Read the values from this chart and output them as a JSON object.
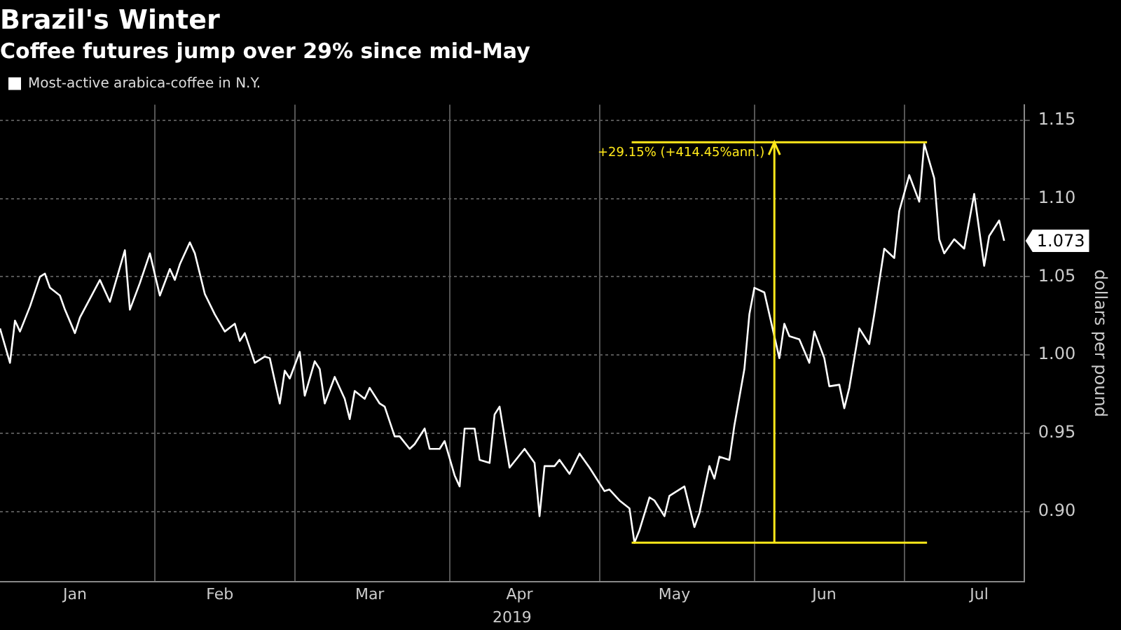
{
  "chart_data": {
    "type": "line",
    "title": "Brazil's Winter",
    "subtitle": "Coffee futures jump over 29% since mid-May",
    "xlabel": "2019",
    "ylabel": "dollars per pound",
    "x": [
      "2019-01-01",
      "2019-01-03",
      "2019-01-04",
      "2019-01-05",
      "2019-01-07",
      "2019-01-09",
      "2019-01-10",
      "2019-01-11",
      "2019-01-13",
      "2019-01-14",
      "2019-01-16",
      "2019-01-17",
      "2019-01-21",
      "2019-01-23",
      "2019-01-26",
      "2019-01-27",
      "2019-01-29",
      "2019-01-31",
      "2019-02-02",
      "2019-02-04",
      "2019-02-05",
      "2019-02-06",
      "2019-02-08",
      "2019-02-09",
      "2019-02-11",
      "2019-02-13",
      "2019-02-15",
      "2019-02-17",
      "2019-02-18",
      "2019-02-19",
      "2019-02-21",
      "2019-02-23",
      "2019-02-24",
      "2019-02-26",
      "2019-02-27",
      "2019-02-28",
      "2019-03-02",
      "2019-03-03",
      "2019-03-05",
      "2019-03-06",
      "2019-03-07",
      "2019-03-09",
      "2019-03-11",
      "2019-03-12",
      "2019-03-13",
      "2019-03-15",
      "2019-03-16",
      "2019-03-18",
      "2019-03-19",
      "2019-03-21",
      "2019-03-22",
      "2019-03-24",
      "2019-03-25",
      "2019-03-27",
      "2019-03-28",
      "2019-03-30",
      "2019-03-31",
      "2019-04-02",
      "2019-04-03",
      "2019-04-04",
      "2019-04-06",
      "2019-04-07",
      "2019-04-09",
      "2019-04-10",
      "2019-04-11",
      "2019-04-13",
      "2019-04-16",
      "2019-04-18",
      "2019-04-19",
      "2019-04-20",
      "2019-04-22",
      "2019-04-23",
      "2019-04-25",
      "2019-04-27",
      "2019-04-29",
      "2019-05-02",
      "2019-05-03",
      "2019-05-05",
      "2019-05-07",
      "2019-05-08",
      "2019-05-09",
      "2019-05-11",
      "2019-05-12",
      "2019-05-14",
      "2019-05-15",
      "2019-05-18",
      "2019-05-20",
      "2019-05-21",
      "2019-05-23",
      "2019-05-24",
      "2019-05-25",
      "2019-05-27",
      "2019-05-28",
      "2019-05-30",
      "2019-05-31",
      "2019-06-01",
      "2019-06-03",
      "2019-06-06",
      "2019-06-07",
      "2019-06-08",
      "2019-06-10",
      "2019-06-12",
      "2019-06-13",
      "2019-06-15",
      "2019-06-16",
      "2019-06-18",
      "2019-06-19",
      "2019-06-20",
      "2019-06-22",
      "2019-06-24",
      "2019-06-25",
      "2019-06-27",
      "2019-06-29",
      "2019-06-30",
      "2019-07-02",
      "2019-07-04",
      "2019-07-05",
      "2019-07-07",
      "2019-07-08",
      "2019-07-09",
      "2019-07-11",
      "2019-07-13",
      "2019-07-15",
      "2019-07-17",
      "2019-07-18",
      "2019-07-20",
      "2019-07-21"
    ],
    "series": [
      {
        "name": "Most-active arabica-coffee in N.Y.",
        "color": "#ffffff",
        "values": [
          1.017,
          0.995,
          1.022,
          1.015,
          1.031,
          1.05,
          1.052,
          1.043,
          1.038,
          1.029,
          1.014,
          1.024,
          1.048,
          1.034,
          1.067,
          1.029,
          1.046,
          1.065,
          1.038,
          1.055,
          1.048,
          1.058,
          1.072,
          1.065,
          1.039,
          1.026,
          1.015,
          1.02,
          1.009,
          1.014,
          0.995,
          0.999,
          0.998,
          0.969,
          0.99,
          0.985,
          1.002,
          0.974,
          0.996,
          0.991,
          0.969,
          0.986,
          0.972,
          0.959,
          0.977,
          0.972,
          0.979,
          0.969,
          0.967,
          0.948,
          0.948,
          0.94,
          0.943,
          0.953,
          0.94,
          0.94,
          0.945,
          0.923,
          0.916,
          0.953,
          0.953,
          0.933,
          0.931,
          0.962,
          0.967,
          0.928,
          0.94,
          0.931,
          0.897,
          0.929,
          0.929,
          0.933,
          0.924,
          0.937,
          0.928,
          0.913,
          0.914,
          0.907,
          0.902,
          0.88,
          0.888,
          0.909,
          0.907,
          0.897,
          0.91,
          0.916,
          0.89,
          0.899,
          0.929,
          0.921,
          0.935,
          0.933,
          0.955,
          0.991,
          1.026,
          1.043,
          1.04,
          0.998,
          1.02,
          1.012,
          1.01,
          0.995,
          1.015,
          0.998,
          0.98,
          0.981,
          0.966,
          0.979,
          1.017,
          1.007,
          1.026,
          1.068,
          1.062,
          1.092,
          1.115,
          1.098,
          1.135,
          1.113,
          1.074,
          1.065,
          1.074,
          1.068,
          1.103,
          1.057,
          1.076,
          1.086,
          1.073
        ],
        "value_labels": [
          null,
          null,
          null,
          null,
          null,
          null,
          null,
          null,
          null,
          null,
          null,
          null,
          null,
          null,
          null,
          null,
          null,
          null,
          null,
          null,
          null,
          null,
          null,
          null,
          null,
          null,
          null,
          null,
          null,
          null,
          null,
          null,
          null,
          null,
          null,
          null,
          null,
          null,
          null,
          null,
          null,
          null,
          null,
          null,
          null,
          null,
          null,
          null,
          null,
          null,
          null,
          null,
          null,
          null,
          null,
          null,
          null,
          null,
          null,
          null,
          null,
          null,
          null,
          null,
          null,
          null,
          null,
          null,
          null,
          null,
          null,
          null,
          null,
          null,
          null,
          null,
          null,
          null,
          null,
          null,
          null,
          null,
          null,
          null,
          null,
          null,
          null,
          null,
          null,
          null,
          null,
          null,
          null,
          null,
          null,
          null,
          null,
          null,
          null,
          null,
          null,
          null,
          null,
          null,
          null,
          null,
          null,
          null,
          null,
          null,
          null,
          null,
          null,
          null,
          null,
          null,
          null,
          null,
          null,
          null,
          null,
          null,
          null,
          null,
          null,
          null,
          "1.073"
        ]
      }
    ],
    "xlim": [
      "2019-01-01",
      "2019-07-25"
    ],
    "xticks": [
      {
        "value": "2019-01-16",
        "label": "Jan"
      },
      {
        "value": "2019-02-01",
        "label": null
      },
      {
        "value": "2019-02-14",
        "label": "Feb"
      },
      {
        "value": "2019-03-01",
        "label": null
      },
      {
        "value": "2019-03-16",
        "label": "Mar"
      },
      {
        "value": "2019-04-01",
        "label": null
      },
      {
        "value": "2019-04-15",
        "label": "Apr"
      },
      {
        "value": "2019-05-01",
        "label": null
      },
      {
        "value": "2019-05-16",
        "label": "May"
      },
      {
        "value": "2019-06-01",
        "label": null
      },
      {
        "value": "2019-06-15",
        "label": "Jun"
      },
      {
        "value": "2019-07-01",
        "label": null
      },
      {
        "value": "2019-07-16",
        "label": "Jul"
      }
    ],
    "ylim": [
      0.855,
      1.16
    ],
    "yticks": [
      {
        "value": 0.9,
        "label": "0.90"
      },
      0.95,
      {
        "value": 1.0,
        "label": "1.00"
      },
      1.05,
      {
        "value": 1.1,
        "label": "1.10"
      },
      1.15
    ],
    "grid": true,
    "legend": "top left",
    "marker": "none",
    "line_style": "solid",
    "ref_lines": [
      {
        "axis": "x",
        "value": "2019-06-05",
        "label": null,
        "color": "#ffe81a"
      },
      {
        "axis": "y",
        "value": 0.88,
        "label": null,
        "color": "#ffe81a"
      },
      {
        "axis": "y",
        "value": 1.136,
        "label": null,
        "color": "#ffe81a"
      }
    ],
    "annotations": [
      {
        "text": "+29.15% (+414.45%ann.)",
        "x": "2019-06-05",
        "y": 1.136
      }
    ]
  }
}
